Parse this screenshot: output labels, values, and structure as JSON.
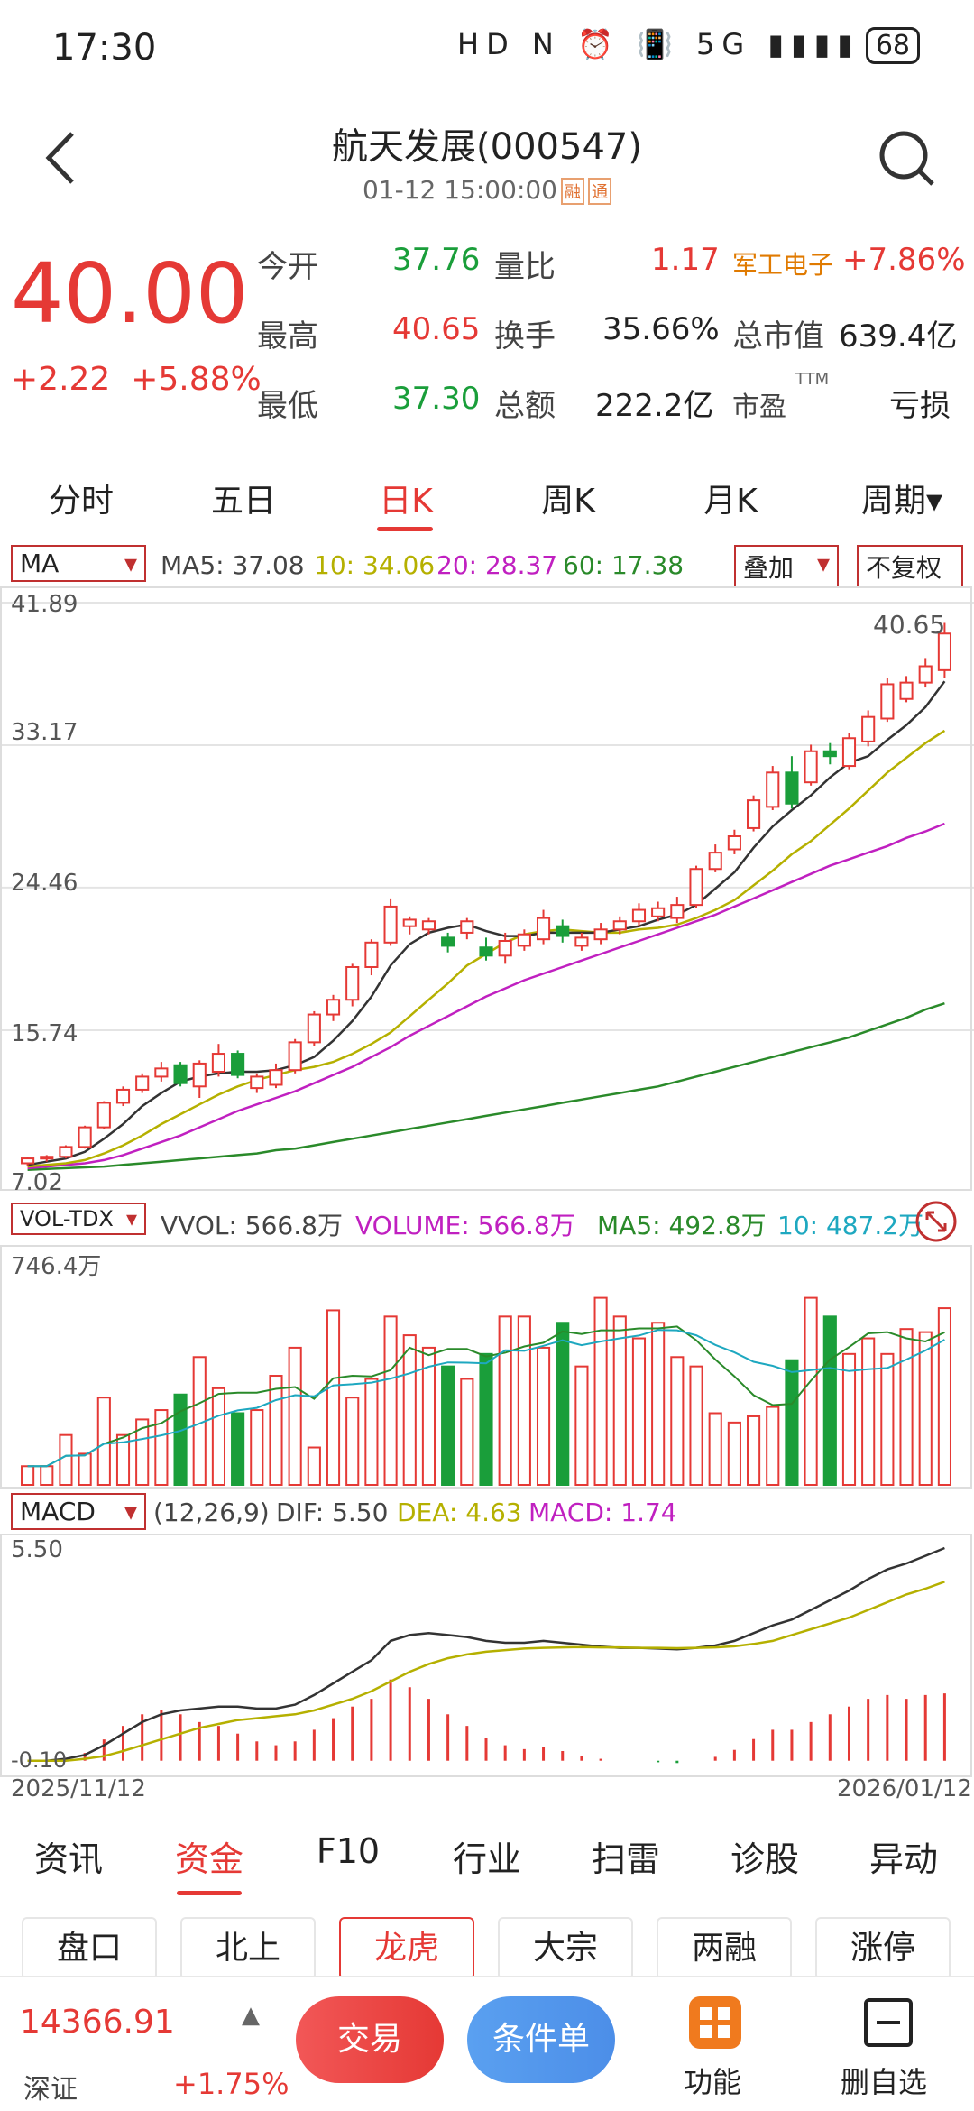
{
  "status_bar": {
    "time": "17:30",
    "icons": "HD N ⏰ 📳 5G ▮▮▮▮",
    "battery": "68"
  },
  "header": {
    "title": "航天发展(000547)",
    "datetime": "01-12 15:00:00",
    "tag1": "融",
    "tag2": "通"
  },
  "quote": {
    "price": "40.00",
    "change": "+2.22",
    "change_pct": "+5.88%",
    "open_label": "今开",
    "open": "37.76",
    "high_label": "最高",
    "high": "40.65",
    "low_label": "最低",
    "low": "37.30",
    "vol_ratio_label": "量比",
    "vol_ratio": "1.17",
    "turnover_label": "换手",
    "turnover": "35.66%",
    "amount_label": "总额",
    "amount": "222.2亿",
    "sector": "军工电子",
    "sector_pct": "+7.86%",
    "mktcap_label": "总市值",
    "mktcap": "639.4亿",
    "pe_label": "市盈",
    "pe_sup": "TTM",
    "pe": "亏损"
  },
  "period_tabs": [
    "分时",
    "五日",
    "日K",
    "周K",
    "月K",
    "周期▾"
  ],
  "ma_bar": {
    "select": "MA",
    "ma5": "MA5: 37.08",
    "ma10": "10: 34.06",
    "ma20": "20: 28.37",
    "ma60": "60: 17.38",
    "overlay": "叠加",
    "adjust": "不复权"
  },
  "price_axis": {
    "max": "41.89",
    "t1": "33.17",
    "t2": "24.46",
    "t3": "15.74",
    "min": "7.02",
    "high_label": "40.65"
  },
  "vol_bar": {
    "select": "VOL-TDX",
    "vvol": "VVOL: 566.8万",
    "volume": "VOLUME: 566.8万",
    "ma5": "MA5: 492.8万",
    "ma10": "10: 487.2万",
    "max": "746.4万"
  },
  "macd_bar": {
    "select": "MACD",
    "params": "(12,26,9)",
    "dif": "DIF: 5.50",
    "dea": "DEA: 4.63",
    "macd": "MACD: 1.74",
    "max": "5.50",
    "min": "-0.10",
    "date_start": "2025/11/12",
    "date_end": "2026/01/12"
  },
  "info_tabs": [
    "资讯",
    "资金",
    "F10",
    "行业",
    "扫雷",
    "诊股",
    "异动"
  ],
  "sub_tabs": [
    "盘口",
    "北上",
    "龙虎",
    "大宗",
    "两融",
    "涨停"
  ],
  "footer": {
    "index_value": "14366.91",
    "index_name": "深证",
    "index_pct": "+1.75%",
    "trade": "交易",
    "condition": "条件单",
    "func": "功能",
    "remove": "删自选"
  },
  "colors": {
    "up": "#e53935",
    "down": "#1a9e3a",
    "ma5": "#333333",
    "ma10": "#b5b000",
    "ma20": "#c020c0",
    "ma60": "#2a8a2a"
  },
  "chart_data": {
    "type": "candlestick",
    "ylim": [
      7.02,
      41.89
    ],
    "candles": [
      [
        7.6,
        7.9,
        7.4,
        8.0
      ],
      [
        7.9,
        8.0,
        7.7,
        8.1
      ],
      [
        8.0,
        8.6,
        7.9,
        8.7
      ],
      [
        8.6,
        9.8,
        8.5,
        9.9
      ],
      [
        9.8,
        11.3,
        9.7,
        11.4
      ],
      [
        11.3,
        12.1,
        11.1,
        12.3
      ],
      [
        12.1,
        12.9,
        11.9,
        13.1
      ],
      [
        12.9,
        13.4,
        12.6,
        13.8
      ],
      [
        13.6,
        12.5,
        12.3,
        13.8
      ],
      [
        12.3,
        13.7,
        11.6,
        13.9
      ],
      [
        13.2,
        14.3,
        12.9,
        14.9
      ],
      [
        14.3,
        13.0,
        12.8,
        14.5
      ],
      [
        12.2,
        12.9,
        11.9,
        13.1
      ],
      [
        12.4,
        13.3,
        12.2,
        13.7
      ],
      [
        13.3,
        15.0,
        13.1,
        15.2
      ],
      [
        15.0,
        16.7,
        14.8,
        16.9
      ],
      [
        16.7,
        17.6,
        16.3,
        17.9
      ],
      [
        17.6,
        19.6,
        17.2,
        19.8
      ],
      [
        19.6,
        21.1,
        19.1,
        21.3
      ],
      [
        21.1,
        23.3,
        20.9,
        23.8
      ],
      [
        22.1,
        22.5,
        21.6,
        22.7
      ],
      [
        21.9,
        22.4,
        21.6,
        22.6
      ],
      [
        21.4,
        20.9,
        20.5,
        21.7
      ],
      [
        21.7,
        22.4,
        21.3,
        22.6
      ],
      [
        20.8,
        20.3,
        20.0,
        21.4
      ],
      [
        20.3,
        21.2,
        19.8,
        21.7
      ],
      [
        20.9,
        21.6,
        20.6,
        21.9
      ],
      [
        21.3,
        22.6,
        21.0,
        23.1
      ],
      [
        22.1,
        21.5,
        21.1,
        22.5
      ],
      [
        20.9,
        21.4,
        20.6,
        21.7
      ],
      [
        21.3,
        21.9,
        21.0,
        22.3
      ],
      [
        21.9,
        22.4,
        21.6,
        22.7
      ],
      [
        22.4,
        23.1,
        22.1,
        23.5
      ],
      [
        22.7,
        23.2,
        22.4,
        23.6
      ],
      [
        22.6,
        23.4,
        22.3,
        23.9
      ],
      [
        23.4,
        25.6,
        23.2,
        25.8
      ],
      [
        25.6,
        26.6,
        25.4,
        27.1
      ],
      [
        26.8,
        27.6,
        26.5,
        28.0
      ],
      [
        28.1,
        29.8,
        27.9,
        30.1
      ],
      [
        29.4,
        31.5,
        29.2,
        31.9
      ],
      [
        31.5,
        29.6,
        29.3,
        32.5
      ],
      [
        30.9,
        32.8,
        30.7,
        33.2
      ],
      [
        32.8,
        32.5,
        32.0,
        33.3
      ],
      [
        31.9,
        33.6,
        31.7,
        33.9
      ],
      [
        33.4,
        34.9,
        33.1,
        35.3
      ],
      [
        34.8,
        36.9,
        34.6,
        37.3
      ],
      [
        36.0,
        37.0,
        35.8,
        37.4
      ],
      [
        37.0,
        38.0,
        36.7,
        38.5
      ],
      [
        37.76,
        40.0,
        37.3,
        40.65
      ]
    ],
    "ma5": [
      7.5,
      7.7,
      7.9,
      8.3,
      9.1,
      10.0,
      11.1,
      11.9,
      12.6,
      12.9,
      13.1,
      13.2,
      13.2,
      13.3,
      13.6,
      14.1,
      15.1,
      16.3,
      17.8,
      19.7,
      21.0,
      21.7,
      22.0,
      22.2,
      21.8,
      21.5,
      21.5,
      21.7,
      21.7,
      21.7,
      21.7,
      21.9,
      22.1,
      22.5,
      22.8,
      23.4,
      24.4,
      25.4,
      26.9,
      28.2,
      29.2,
      30.1,
      31.2,
      32.1,
      32.5,
      33.5,
      34.4,
      35.5,
      37.08
    ],
    "ma10": [
      7.4,
      7.5,
      7.6,
      7.8,
      8.2,
      8.7,
      9.3,
      10.0,
      10.6,
      11.2,
      11.8,
      12.3,
      12.7,
      13.0,
      13.3,
      13.5,
      13.8,
      14.3,
      14.9,
      15.6,
      16.6,
      17.6,
      18.6,
      19.7,
      20.4,
      21.1,
      21.6,
      21.8,
      21.9,
      21.8,
      21.7,
      21.7,
      21.9,
      22.0,
      22.2,
      22.6,
      23.1,
      23.7,
      24.6,
      25.5,
      26.5,
      27.3,
      28.3,
      29.3,
      30.4,
      31.5,
      32.4,
      33.3,
      34.06
    ],
    "ma20": [
      7.3,
      7.4,
      7.5,
      7.6,
      7.8,
      8.1,
      8.5,
      8.9,
      9.3,
      9.8,
      10.3,
      10.8,
      11.2,
      11.6,
      12.0,
      12.5,
      13.0,
      13.5,
      14.1,
      14.7,
      15.4,
      16.0,
      16.6,
      17.2,
      17.8,
      18.3,
      18.8,
      19.2,
      19.6,
      20.0,
      20.4,
      20.8,
      21.2,
      21.6,
      22.0,
      22.4,
      22.8,
      23.3,
      23.8,
      24.3,
      24.8,
      25.3,
      25.8,
      26.2,
      26.6,
      27.0,
      27.5,
      27.9,
      28.37
    ],
    "ma60": [
      7.2,
      7.25,
      7.3,
      7.35,
      7.4,
      7.5,
      7.6,
      7.7,
      7.8,
      7.9,
      8.0,
      8.1,
      8.2,
      8.4,
      8.5,
      8.7,
      8.9,
      9.1,
      9.3,
      9.5,
      9.7,
      9.9,
      10.1,
      10.3,
      10.5,
      10.7,
      10.9,
      11.1,
      11.3,
      11.5,
      11.7,
      11.9,
      12.1,
      12.3,
      12.6,
      12.9,
      13.2,
      13.5,
      13.8,
      14.1,
      14.4,
      14.7,
      15.0,
      15.3,
      15.7,
      16.1,
      16.5,
      17.0,
      17.38
    ],
    "volumes": [
      60,
      60,
      160,
      100,
      280,
      160,
      210,
      240,
      290,
      410,
      310,
      230,
      240,
      350,
      440,
      120,
      560,
      280,
      340,
      540,
      480,
      440,
      380,
      340,
      420,
      540,
      540,
      440,
      520,
      380,
      600,
      540,
      470,
      520,
      410,
      380,
      230,
      200,
      220,
      250,
      400,
      600,
      540,
      420,
      470,
      420,
      500,
      490,
      566.8
    ],
    "vol_ylim": [
      0,
      746.4
    ],
    "dif": [
      0.0,
      0.0,
      0.05,
      0.15,
      0.4,
      0.7,
      1.0,
      1.2,
      1.3,
      1.35,
      1.4,
      1.4,
      1.35,
      1.35,
      1.45,
      1.7,
      2.0,
      2.3,
      2.6,
      3.1,
      3.25,
      3.3,
      3.25,
      3.2,
      3.1,
      3.05,
      3.05,
      3.1,
      3.05,
      3.0,
      2.95,
      2.92,
      2.92,
      2.9,
      2.88,
      2.92,
      2.98,
      3.1,
      3.3,
      3.5,
      3.65,
      3.9,
      4.15,
      4.4,
      4.7,
      4.95,
      5.1,
      5.3,
      5.5
    ],
    "dea": [
      0.0,
      0.0,
      0.0,
      0.05,
      0.12,
      0.25,
      0.4,
      0.55,
      0.7,
      0.85,
      0.95,
      1.05,
      1.1,
      1.15,
      1.2,
      1.3,
      1.45,
      1.6,
      1.8,
      2.05,
      2.3,
      2.5,
      2.65,
      2.75,
      2.82,
      2.86,
      2.9,
      2.92,
      2.93,
      2.94,
      2.93,
      2.93,
      2.92,
      2.92,
      2.91,
      2.92,
      2.93,
      2.96,
      3.02,
      3.1,
      3.25,
      3.4,
      3.55,
      3.7,
      3.9,
      4.1,
      4.3,
      4.45,
      4.63
    ],
    "macd": [
      0.0,
      0.0,
      0.05,
      0.2,
      0.55,
      0.9,
      1.2,
      1.3,
      1.2,
      1.0,
      0.9,
      0.7,
      0.5,
      0.4,
      0.5,
      0.8,
      1.1,
      1.4,
      1.6,
      2.1,
      1.9,
      1.6,
      1.2,
      0.9,
      0.6,
      0.4,
      0.3,
      0.35,
      0.25,
      0.12,
      0.05,
      0.0,
      0.0,
      -0.04,
      -0.06,
      0.0,
      0.1,
      0.28,
      0.56,
      0.8,
      0.8,
      1.0,
      1.2,
      1.4,
      1.6,
      1.7,
      1.6,
      1.7,
      1.74
    ],
    "macd_ylim": [
      -0.1,
      5.5
    ]
  }
}
